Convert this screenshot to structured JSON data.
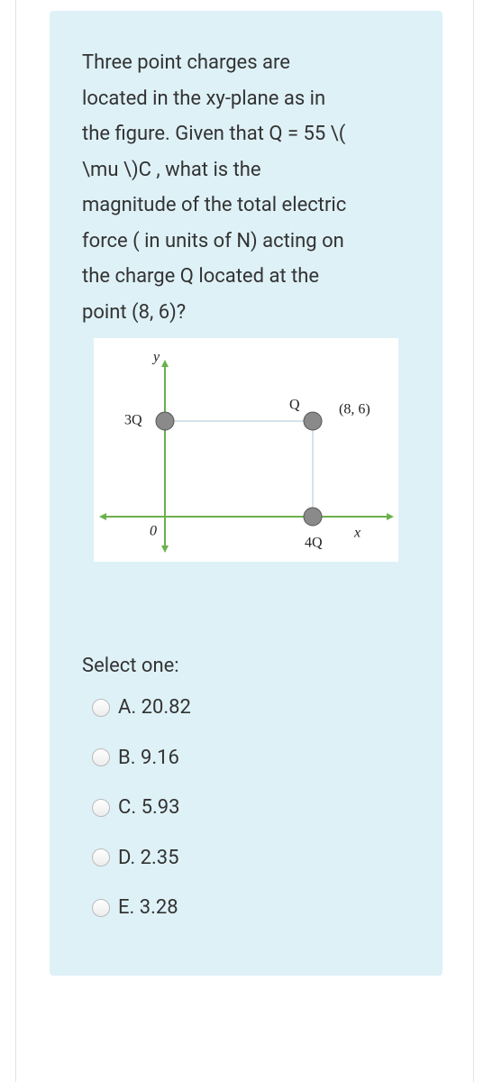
{
  "question": {
    "lines": [
      "Three point charges are",
      "located in the xy-plane as in",
      "the figure. Given that Q = 55  \\(",
      "\\mu \\)C , what is the",
      "magnitude of the total electric",
      "force ( in units of N) acting on",
      "the charge Q located at the",
      "point (8, 6)?"
    ]
  },
  "figure": {
    "y_axis": "y",
    "x_axis": "x",
    "origin": "0",
    "charge_left": "3Q",
    "charge_top": "Q",
    "point_label": "(8, 6)",
    "charge_bottom": "4Q"
  },
  "answers": {
    "prompt": "Select one:",
    "options": [
      "A. 20.82",
      "B. 9.16",
      "C. 5.93",
      "D. 2.35",
      "E. 3.28"
    ]
  }
}
